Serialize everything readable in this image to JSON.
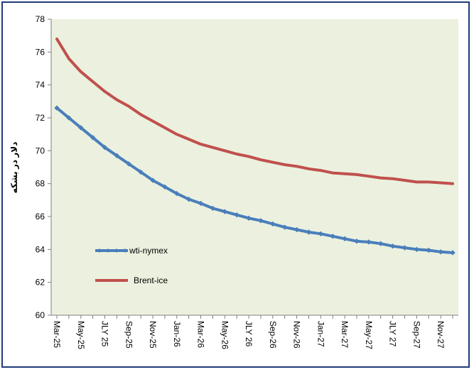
{
  "chart_data": {
    "type": "line",
    "title": "",
    "xlabel": "",
    "ylabel": "دلار در بشکه",
    "ylim": [
      60,
      78
    ],
    "yticks": [
      60,
      62,
      64,
      66,
      68,
      70,
      72,
      74,
      76,
      78
    ],
    "grid": false,
    "legend_position": "bottom-left",
    "background_color": "#ebf1de",
    "categories": [
      "Mar-25",
      "Apr-25",
      "May-25",
      "Jun-25",
      "JLY 25",
      "Aug-25",
      "Sep-25",
      "Oct-25",
      "Nov-25",
      "Dec-25",
      "Jan-26",
      "Feb-26",
      "Mar-26",
      "Apr-26",
      "May-26",
      "Jun-26",
      "JLY 26",
      "Aug-26",
      "Sep-26",
      "Oct-26",
      "Nov-26",
      "Dec-26",
      "Jan-27",
      "Feb-27",
      "Mar-27",
      "Apr-27",
      "May-27",
      "Jun-27",
      "JLY 27",
      "Aug-27",
      "Sep-27",
      "Oct-27",
      "Nov-27",
      "Dec-27"
    ],
    "tick_labels": [
      "Mar-25",
      "May-25",
      "JLY 25",
      "Sep-25",
      "Nov-25",
      "Jan-26",
      "Mar-26",
      "May-26",
      "JLY 26",
      "Sep-26",
      "Nov-26",
      "Jan-27",
      "Mar-27",
      "May-27",
      "JLY 27",
      "Sep-27",
      "Nov-27"
    ],
    "series": [
      {
        "name": "wti-nymex",
        "color": "#4a7ebb",
        "marker": "diamond",
        "values": [
          72.6,
          72.0,
          71.4,
          70.8,
          70.2,
          69.7,
          69.2,
          68.7,
          68.2,
          67.8,
          67.4,
          67.05,
          66.8,
          66.5,
          66.3,
          66.1,
          65.9,
          65.75,
          65.55,
          65.35,
          65.2,
          65.05,
          64.95,
          64.8,
          64.65,
          64.5,
          64.45,
          64.35,
          64.2,
          64.1,
          64.0,
          63.95,
          63.85,
          63.8
        ]
      },
      {
        "name": "Brent-ice",
        "color": "#c0504d",
        "marker": "none",
        "values": [
          76.8,
          75.6,
          74.8,
          74.2,
          73.6,
          73.1,
          72.7,
          72.2,
          71.8,
          71.4,
          71.0,
          70.7,
          70.4,
          70.2,
          70.0,
          69.8,
          69.65,
          69.45,
          69.3,
          69.15,
          69.05,
          68.9,
          68.8,
          68.65,
          68.6,
          68.55,
          68.45,
          68.35,
          68.3,
          68.2,
          68.1,
          68.1,
          68.05,
          68.0
        ]
      }
    ]
  }
}
